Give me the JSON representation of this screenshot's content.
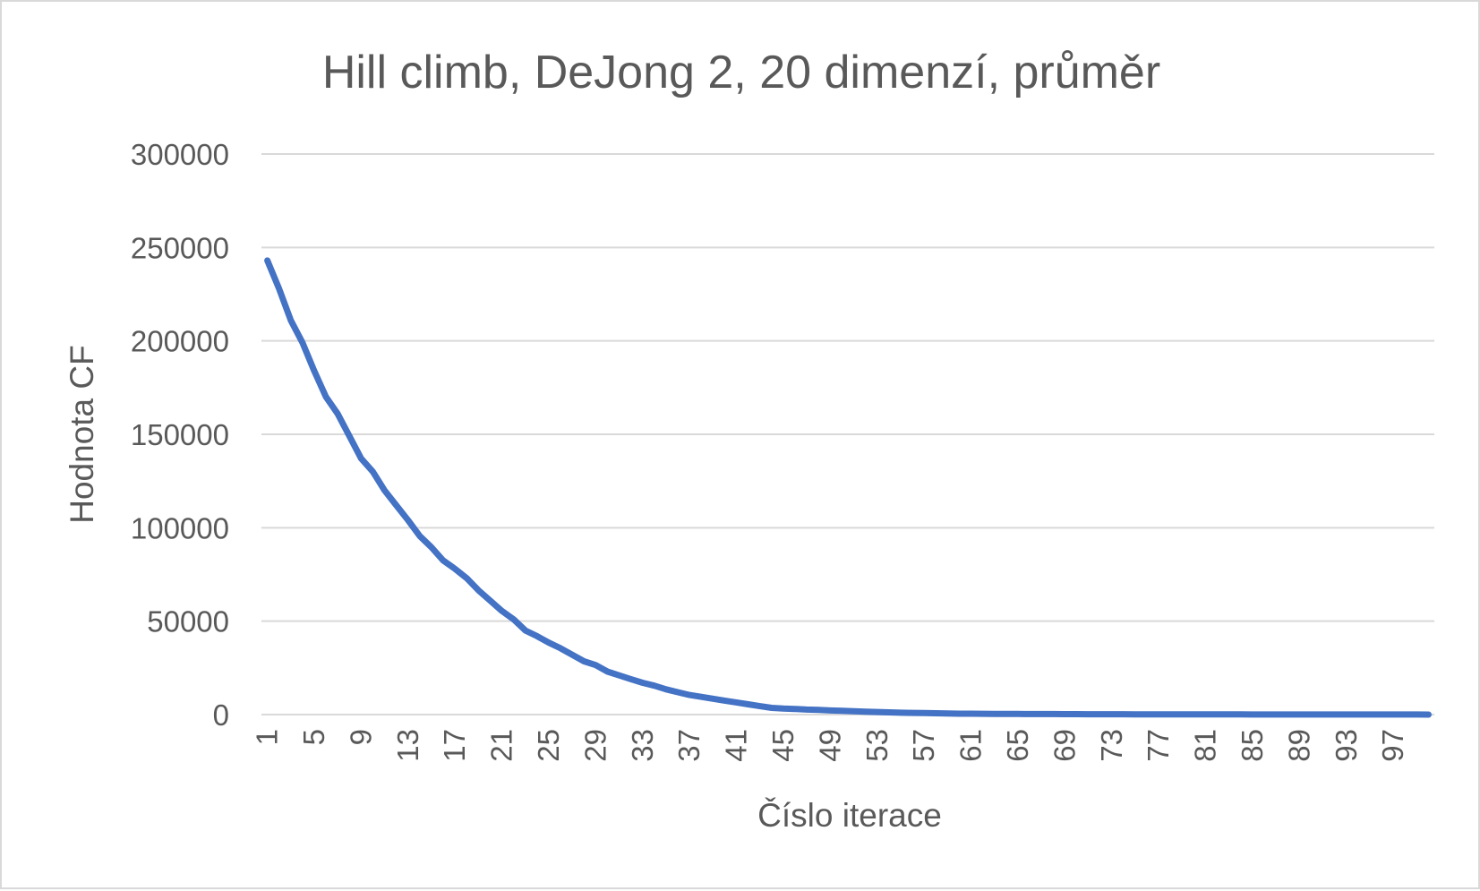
{
  "chart_data": {
    "type": "line",
    "title": "Hill climb, DeJong 2, 20 dimenzí, průměr",
    "xlabel": "Číslo iterace",
    "ylabel": "Hodnota CF",
    "ylim": [
      0,
      300000
    ],
    "y_ticks": [
      "0",
      "50000",
      "100000",
      "150000",
      "200000",
      "250000",
      "300000"
    ],
    "x_ticks": [
      "1",
      "5",
      "9",
      "13",
      "17",
      "21",
      "25",
      "29",
      "33",
      "37",
      "41",
      "45",
      "49",
      "53",
      "57",
      "61",
      "65",
      "69",
      "73",
      "77",
      "81",
      "85",
      "89",
      "93",
      "97"
    ],
    "grid": true,
    "legend": "none",
    "series": [
      {
        "color": "#4472c4",
        "x": [
          1,
          2,
          3,
          4,
          5,
          6,
          7,
          8,
          9,
          10,
          11,
          12,
          13,
          14,
          15,
          16,
          17,
          18,
          19,
          20,
          21,
          22,
          23,
          24,
          25,
          26,
          27,
          28,
          29,
          30,
          31,
          32,
          33,
          34,
          35,
          36,
          37,
          38,
          39,
          40,
          41,
          42,
          43,
          44,
          45,
          46,
          47,
          48,
          49,
          50,
          51,
          52,
          53,
          54,
          55,
          56,
          57,
          58,
          59,
          60,
          61,
          62,
          63,
          64,
          65,
          66,
          67,
          68,
          69,
          70,
          71,
          72,
          73,
          74,
          75,
          76,
          77,
          78,
          79,
          80,
          81,
          82,
          83,
          84,
          85,
          86,
          87,
          88,
          89,
          90,
          91,
          92,
          93,
          94,
          95,
          96,
          97,
          98,
          99,
          100
        ],
        "values": [
          243000,
          228000,
          211000,
          199000,
          184000,
          170000,
          161000,
          149000,
          137000,
          130000,
          120000,
          112000,
          104000,
          95500,
          89500,
          82500,
          78000,
          73000,
          66500,
          61000,
          55500,
          51000,
          45000,
          42000,
          38500,
          35500,
          32000,
          28500,
          26500,
          23000,
          21000,
          19000,
          17000,
          15500,
          13500,
          12000,
          10500,
          9500,
          8500,
          7500,
          6500,
          5500,
          4500,
          3600,
          3200,
          3000,
          2700,
          2500,
          2200,
          2000,
          1800,
          1600,
          1400,
          1200,
          1000,
          900,
          800,
          700,
          600,
          500,
          460,
          430,
          400,
          370,
          340,
          310,
          290,
          270,
          250,
          230,
          210,
          190,
          180,
          170,
          160,
          150,
          140,
          130,
          120,
          110,
          100,
          90,
          80,
          75,
          70,
          65,
          60,
          55,
          50,
          45,
          40,
          38,
          36,
          34,
          32,
          30,
          28,
          26,
          24,
          22
        ]
      }
    ]
  }
}
